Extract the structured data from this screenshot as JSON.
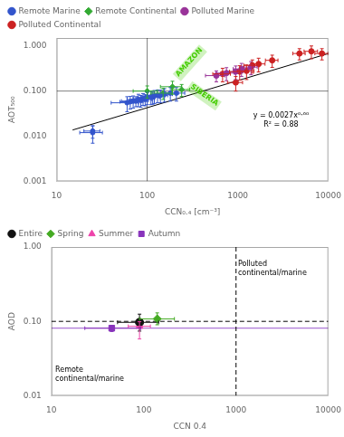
{
  "chart_data": [
    {
      "type": "scatter",
      "log": true,
      "grid": false,
      "legend": "upper left",
      "xlabel": "CCN₀.₄ [cm⁻³]",
      "ylabel": "AOT₅₀₀",
      "xlim": [
        10,
        10000
      ],
      "ylim": [
        0.001,
        1.5
      ],
      "xticks": [
        10,
        100,
        1000,
        10000
      ],
      "yticks": [
        0.001,
        {
          "value": 0.01,
          "label": "0.010"
        },
        {
          "value": 0.1,
          "label": "0.100"
        },
        {
          "value": 1,
          "label": "1.000"
        }
      ],
      "series": [
        {
          "name": "Remote Marine",
          "color": "#3355cc",
          "marker": "circle",
          "points": [
            {
              "x": 25,
              "y": 0.012,
              "xerr": 7,
              "yerr": 0.005
            },
            {
              "x": 25,
              "y": 0.013,
              "xerr": 5,
              "yerr": 0.004
            },
            {
              "x": 60,
              "y": 0.055,
              "xerr": 20,
              "yerr": 0.02
            },
            {
              "x": 65,
              "y": 0.058,
              "xerr": 15,
              "yerr": 0.018
            },
            {
              "x": 70,
              "y": 0.06,
              "xerr": 18,
              "yerr": 0.018
            },
            {
              "x": 75,
              "y": 0.06,
              "xerr": 15,
              "yerr": 0.015
            },
            {
              "x": 80,
              "y": 0.065,
              "xerr": 20,
              "yerr": 0.02
            },
            {
              "x": 85,
              "y": 0.062,
              "xerr": 18,
              "yerr": 0.018
            },
            {
              "x": 90,
              "y": 0.068,
              "xerr": 20,
              "yerr": 0.02
            },
            {
              "x": 95,
              "y": 0.065,
              "xerr": 18,
              "yerr": 0.018
            },
            {
              "x": 100,
              "y": 0.072,
              "xerr": 22,
              "yerr": 0.022
            },
            {
              "x": 110,
              "y": 0.075,
              "xerr": 25,
              "yerr": 0.025
            },
            {
              "x": 115,
              "y": 0.073,
              "xerr": 22,
              "yerr": 0.022
            },
            {
              "x": 120,
              "y": 0.078,
              "xerr": 25,
              "yerr": 0.025
            },
            {
              "x": 130,
              "y": 0.08,
              "xerr": 28,
              "yerr": 0.025
            },
            {
              "x": 140,
              "y": 0.08,
              "xerr": 28,
              "yerr": 0.025
            },
            {
              "x": 155,
              "y": 0.085,
              "xerr": 35,
              "yerr": 0.028
            },
            {
              "x": 180,
              "y": 0.09,
              "xerr": 40,
              "yerr": 0.03
            },
            {
              "x": 210,
              "y": 0.09,
              "xerr": 50,
              "yerr": 0.03
            }
          ]
        },
        {
          "name": "Remote Continental",
          "color": "#33aa33",
          "marker": "diamond",
          "points": [
            {
              "x": 100,
              "y": 0.1,
              "xerr": 30,
              "yerr": 0.03
            },
            {
              "x": 150,
              "y": 0.09,
              "xerr": 40,
              "yerr": 0.025
            },
            {
              "x": 190,
              "y": 0.125,
              "xerr": 50,
              "yerr": 0.04
            },
            {
              "x": 240,
              "y": 0.108,
              "xerr": 55,
              "yerr": 0.032
            }
          ]
        },
        {
          "name": "Polluted Marine",
          "color": "#993399",
          "marker": "circle",
          "points": [
            {
              "x": 580,
              "y": 0.22,
              "xerr": 140,
              "yerr": 0.06
            },
            {
              "x": 750,
              "y": 0.25,
              "xerr": 170,
              "yerr": 0.08
            },
            {
              "x": 950,
              "y": 0.27,
              "xerr": 190,
              "yerr": 0.09
            },
            {
              "x": 1100,
              "y": 0.31,
              "xerr": 210,
              "yerr": 0.1
            },
            {
              "x": 1400,
              "y": 0.34,
              "xerr": 240,
              "yerr": 0.11
            }
          ]
        },
        {
          "name": "Polluted Continental",
          "color": "#cc2222",
          "marker": "circle",
          "points": [
            {
              "x": 680,
              "y": 0.24,
              "xerr": 150,
              "yerr": 0.08
            },
            {
              "x": 950,
              "y": 0.155,
              "xerr": 180,
              "yerr": 0.055
            },
            {
              "x": 1050,
              "y": 0.27,
              "xerr": 240,
              "yerr": 0.095
            },
            {
              "x": 1250,
              "y": 0.28,
              "xerr": 260,
              "yerr": 0.1
            },
            {
              "x": 1450,
              "y": 0.37,
              "xerr": 280,
              "yerr": 0.12
            },
            {
              "x": 1700,
              "y": 0.4,
              "xerr": 300,
              "yerr": 0.135
            },
            {
              "x": 2400,
              "y": 0.48,
              "xerr": 380,
              "yerr": 0.145
            },
            {
              "x": 4800,
              "y": 0.68,
              "xerr": 750,
              "yerr": 0.19
            },
            {
              "x": 6500,
              "y": 0.76,
              "xerr": 1100,
              "yerr": 0.24
            },
            {
              "x": 8500,
              "y": 0.68,
              "xerr": 1400,
              "yerr": 0.19
            }
          ]
        }
      ],
      "fit_line": {
        "x": [
          15,
          12000
        ],
        "y": [
          0.01371,
          0.7566
        ],
        "color": "black"
      },
      "hlines": [
        {
          "value": 0.1,
          "color": "gray",
          "line_style": "solid"
        }
      ],
      "vlines": [
        {
          "value": 100,
          "color": "gray",
          "line_style": "solid"
        }
      ],
      "annotations": [
        {
          "text": "AMAZON",
          "x": 230,
          "y": 0.195,
          "color": "#44cc00"
        },
        {
          "text": "SIBERIA",
          "x": 290,
          "y": 0.112,
          "color": "#44cc00"
        },
        {
          "text": "y = 0.0027x⁰·⁶⁰\nR² = 0.88",
          "x": 3000,
          "y": 0.015,
          "color": "black"
        }
      ]
    },
    {
      "type": "scatter",
      "log": true,
      "grid": false,
      "legend": "upper left",
      "xlabel": "CCN 0.4",
      "ylabel": "AOD",
      "xlim": [
        10,
        10000
      ],
      "ylim": [
        0.01,
        1
      ],
      "xticks": [
        10,
        100,
        1000,
        10000
      ],
      "yticks": [
        0.01,
        {
          "value": 0.1,
          "label": "0.10"
        },
        {
          "value": 1,
          "label": "1.00"
        }
      ],
      "series": [
        {
          "name": "Entire",
          "color": "#111111",
          "marker": "circle",
          "points": [
            {
              "x": 90,
              "y": 0.097,
              "xerr_lo": 38,
              "xerr_hi": 55,
              "yerr_lo": 0.023,
              "yerr_hi": 0.028
            }
          ]
        },
        {
          "name": "Spring",
          "color": "#44aa22",
          "marker": "diamond",
          "points": [
            {
              "x": 140,
              "y": 0.108,
              "xerr_lo": 50,
              "xerr_hi": 75,
              "yerr_lo": 0.018,
              "yerr_hi": 0.022
            }
          ]
        },
        {
          "name": "Summer",
          "color": "#ee44aa",
          "marker": "triangle",
          "points": [
            {
              "x": 90,
              "y": 0.086,
              "xerr_lo": 22,
              "xerr_hi": 28,
              "yerr_lo": 0.028,
              "yerr_hi": 0.013
            }
          ]
        },
        {
          "name": "Autumn",
          "color": "#8833bb",
          "marker": "square",
          "points": [
            {
              "x": 45,
              "y": 0.081,
              "xerr_lo": 22,
              "xerr_hi": 48,
              "yerr_lo": 0.008,
              "yerr_hi": 0.006
            }
          ]
        }
      ],
      "hlines": [
        {
          "value": 0.1,
          "color": "black",
          "line_style": "dashed"
        },
        {
          "value": 0.081,
          "color": "#9955cc",
          "line_style": "solid"
        }
      ],
      "vlines": [
        {
          "value": 1000,
          "color": "black",
          "line_style": "dashed"
        }
      ],
      "annotations": [
        {
          "text": "Polluted\ncontinental/marine",
          "x": 1050,
          "y": 0.65,
          "color": "black"
        },
        {
          "text": "Remote\ncontinental/marine",
          "x": 11,
          "y": 0.015,
          "color": "black"
        }
      ]
    }
  ]
}
